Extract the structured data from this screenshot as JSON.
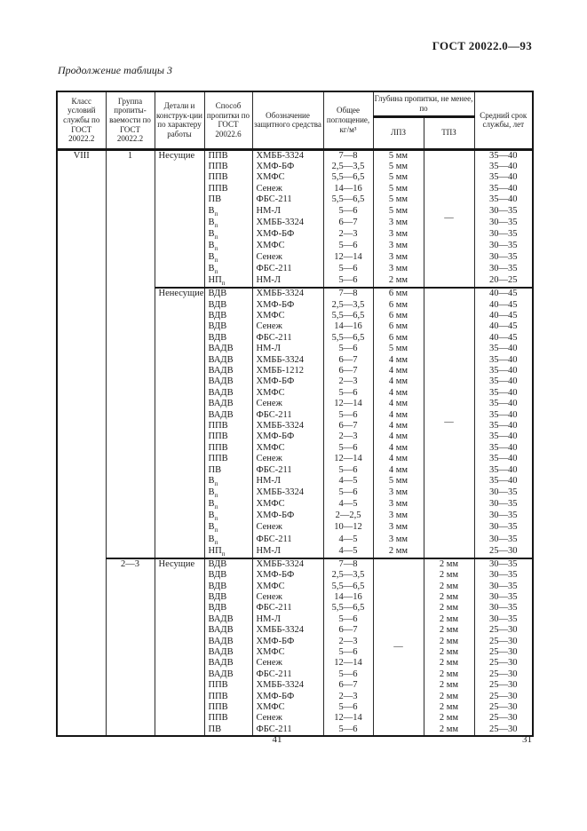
{
  "page": {
    "doc_number": "ГОСТ 20022.0—93",
    "table_caption": "Продолжение таблицы 3",
    "footer_page_number": "41",
    "corner_page_number": "31",
    "ink_color": "#1c1c1c",
    "paper_color": "#ffffff"
  },
  "table": {
    "headers": {
      "klass": "Класс условий службы по ГОСТ 20022.2",
      "group": "Группа пропиты-ваемости по ГОСТ 20022.2",
      "detail": "Детали и конструк-ции по характеру работы",
      "sposob": "Способ пропитки по ГОСТ 20022.6",
      "sredstvo": "Обозначение защитного средства",
      "pogloshenie": "Общее поглощение, кг/м³",
      "glubina": "Глубина пропитки, не менее, по",
      "lpz": "ЛПЗ",
      "tpz": "ТПЗ",
      "srok": "Средний срок службы, лет"
    },
    "klass": "VIII",
    "groups": [
      {
        "group": "1",
        "subsections": [
          {
            "detail": "Несущие",
            "depth_col": "lpz",
            "dash": "—",
            "rows": [
              [
                "ППВ",
                "ХМББ-3324",
                "7—8",
                "5 мм",
                "35—40"
              ],
              [
                "ППВ",
                "ХМФ-БФ",
                "2,5—3,5",
                "5 мм",
                "35—40"
              ],
              [
                "ППВ",
                "ХМФС",
                "5,5—6,5",
                "5 мм",
                "35—40"
              ],
              [
                "ППВ",
                "Сенеж",
                "14—16",
                "5 мм",
                "35—40"
              ],
              [
                "ПВ",
                "ФБС-211",
                "5,5—6,5",
                "5 мм",
                "35—40"
              ],
              [
                "В_п",
                "НМ-Л",
                "5—6",
                "5 мм",
                "30—35"
              ],
              [
                "В_п",
                "ХМББ-3324",
                "6—7",
                "3 мм",
                "30—35"
              ],
              [
                "В_п",
                "ХМФ-БФ",
                "2—3",
                "3 мм",
                "30—35"
              ],
              [
                "В_п",
                "ХМФС",
                "5—6",
                "3 мм",
                "30—35"
              ],
              [
                "В_п",
                "Сенеж",
                "12—14",
                "3 мм",
                "30—35"
              ],
              [
                "В_п",
                "ФБС-211",
                "5—6",
                "3 мм",
                "30—35"
              ],
              [
                "НП_п",
                "НМ-Л",
                "5—6",
                "2 мм",
                "20—25"
              ]
            ]
          },
          {
            "detail": "Ненесущие",
            "depth_col": "lpz",
            "dash": "—",
            "rows": [
              [
                "ВДВ",
                "ХМББ-3324",
                "7—8",
                "6 мм",
                "40—45"
              ],
              [
                "ВДВ",
                "ХМФ-БФ",
                "2,5—3,5",
                "6 мм",
                "40—45"
              ],
              [
                "ВДВ",
                "ХМФС",
                "5,5—6,5",
                "6 мм",
                "40—45"
              ],
              [
                "ВДВ",
                "Сенеж",
                "14—16",
                "6 мм",
                "40—45"
              ],
              [
                "ВДВ",
                "ФБС-211",
                "5,5—6,5",
                "6 мм",
                "40—45"
              ],
              [
                "ВАДВ",
                "НМ-Л",
                "5—6",
                "5 мм",
                "35—40"
              ],
              [
                "ВАДВ",
                "ХМББ-3324",
                "6—7",
                "4 мм",
                "35—40"
              ],
              [
                "ВАДВ",
                "ХМББ-1212",
                "6—7",
                "4 мм",
                "35—40"
              ],
              [
                "ВАДВ",
                "ХМФ-БФ",
                "2—3",
                "4 мм",
                "35—40"
              ],
              [
                "ВАДВ",
                "ХМФС",
                "5—6",
                "4 мм",
                "35—40"
              ],
              [
                "ВАДВ",
                "Сенеж",
                "12—14",
                "4 мм",
                "35—40"
              ],
              [
                "ВАДВ",
                "ФБС-211",
                "5—6",
                "4 мм",
                "35—40"
              ],
              [
                "ППВ",
                "ХМББ-3324",
                "6—7",
                "4 мм",
                "35—40"
              ],
              [
                "ППВ",
                "ХМФ-БФ",
                "2—3",
                "4 мм",
                "35—40"
              ],
              [
                "ППВ",
                "ХМФС",
                "5—6",
                "4 мм",
                "35—40"
              ],
              [
                "ППВ",
                "Сенеж",
                "12—14",
                "4 мм",
                "35—40"
              ],
              [
                "ПВ",
                "ФБС-211",
                "5—6",
                "4 мм",
                "35—40"
              ],
              [
                "В_п",
                "НМ-Л",
                "4—5",
                "5 мм",
                "35—40"
              ],
              [
                "В_п",
                "ХМББ-3324",
                "5—6",
                "3 мм",
                "30—35"
              ],
              [
                "В_п",
                "ХМФС",
                "4—5",
                "3 мм",
                "30—35"
              ],
              [
                "В_п",
                "ХМФ-БФ",
                "2—2,5",
                "3 мм",
                "30—35"
              ],
              [
                "В_п",
                "Сенеж",
                "10—12",
                "3 мм",
                "30—35"
              ],
              [
                "В_п",
                "ФБС-211",
                "4—5",
                "3 мм",
                "30—35"
              ],
              [
                "НП_п",
                "НМ-Л",
                "4—5",
                "2 мм",
                "25—30"
              ]
            ]
          }
        ]
      },
      {
        "group": "2—3",
        "subsections": [
          {
            "detail": "Несущие",
            "depth_col": "tpz",
            "dash": "—",
            "rows": [
              [
                "ВДВ",
                "ХМББ-3324",
                "7—8",
                "2 мм",
                "30—35"
              ],
              [
                "ВДВ",
                "ХМФ-БФ",
                "2,5—3,5",
                "2 мм",
                "30—35"
              ],
              [
                "ВДВ",
                "ХМФС",
                "5,5—6,5",
                "2 мм",
                "30—35"
              ],
              [
                "ВДВ",
                "Сенеж",
                "14—16",
                "2 мм",
                "30—35"
              ],
              [
                "ВДВ",
                "ФБС-211",
                "5,5—6,5",
                "2 мм",
                "30—35"
              ],
              [
                "ВАДВ",
                "НМ-Л",
                "5—6",
                "2 мм",
                "30—35"
              ],
              [
                "ВАДВ",
                "ХМББ-3324",
                "6—7",
                "2 мм",
                "25—30"
              ],
              [
                "ВАДВ",
                "ХМФ-БФ",
                "2—3",
                "2 мм",
                "25—30"
              ],
              [
                "ВАДВ",
                "ХМФС",
                "5—6",
                "2 мм",
                "25—30"
              ],
              [
                "ВАДВ",
                "Сенеж",
                "12—14",
                "2 мм",
                "25—30"
              ],
              [
                "ВАДВ",
                "ФБС-211",
                "5—6",
                "2 мм",
                "25—30"
              ],
              [
                "ППВ",
                "ХМББ-3324",
                "6—7",
                "2 мм",
                "25—30"
              ],
              [
                "ППВ",
                "ХМФ-БФ",
                "2—3",
                "2 мм",
                "25—30"
              ],
              [
                "ППВ",
                "ХМФС",
                "5—6",
                "2 мм",
                "25—30"
              ],
              [
                "ППВ",
                "Сенеж",
                "12—14",
                "2 мм",
                "25—30"
              ],
              [
                "ПВ",
                "ФБС-211",
                "5—6",
                "2 мм",
                "25—30"
              ]
            ]
          }
        ]
      }
    ]
  }
}
